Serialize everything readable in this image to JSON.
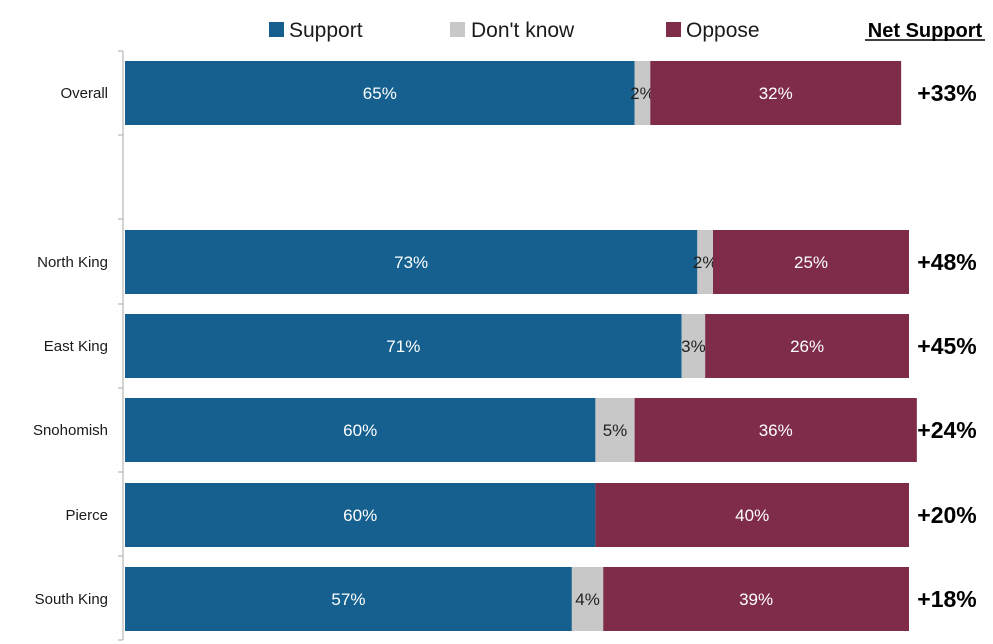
{
  "chart_data": {
    "type": "bar",
    "orientation": "horizontal",
    "stacked": true,
    "categories": [
      "Overall",
      "North King",
      "East King",
      "Snohomish",
      "Pierce",
      "South King"
    ],
    "series": [
      {
        "name": "Support",
        "color": "#15608f",
        "values": [
          65,
          73,
          71,
          60,
          60,
          57
        ],
        "labels": [
          "65%",
          "73%",
          "71%",
          "60%",
          "60%",
          "57%"
        ]
      },
      {
        "name": "Don't know",
        "color": "#c8c8c8",
        "values": [
          2,
          2,
          3,
          5,
          0,
          4
        ],
        "labels": [
          "2%",
          "2%",
          "3%",
          "5%",
          "",
          "4%"
        ]
      },
      {
        "name": "Oppose",
        "color": "#7e2c4a",
        "values": [
          32,
          25,
          26,
          36,
          40,
          39
        ],
        "labels": [
          "32%",
          "25%",
          "26%",
          "36%",
          "40%",
          "39%"
        ]
      }
    ],
    "net_support_title": "Net Support",
    "net_support": [
      "+33%",
      "+48%",
      "+45%",
      "+24%",
      "+20%",
      "+18%"
    ],
    "legend_position": "top",
    "xlim": [
      0,
      100
    ]
  }
}
